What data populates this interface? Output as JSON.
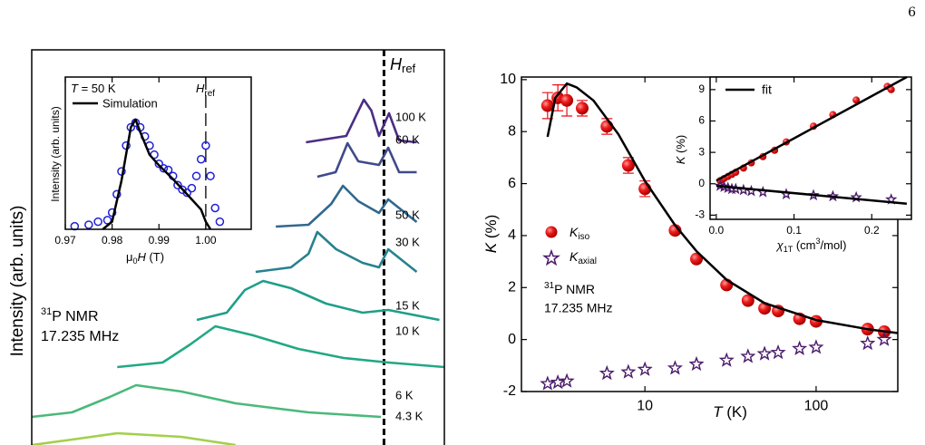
{
  "page_number": "6",
  "chart_data": [
    {
      "type": "line",
      "ylabel": "Intensity (arb. units)",
      "annotation": {
        "sup": "31",
        "text": "P NMR",
        "line2": "17.235 MHz"
      },
      "ref_x": 1,
      "ref_label": {
        "main": "H",
        "sub": "ref"
      },
      "xlim": [
        0.86,
        1.024
      ],
      "ylim": [
        0,
        436
      ],
      "series": [
        {
          "name": "100 K",
          "color": "#4b2e83",
          "x": [
            0.969,
            0.985,
            0.992,
            0.995,
            0.998,
            1.002,
            1.006,
            1.013
          ],
          "values": [
            334,
            341,
            381,
            369,
            341,
            366,
            336,
            334
          ]
        },
        {
          "name": "60 K",
          "color": "#3f4a8a",
          "x": [
            0.9735,
            0.9808,
            0.9855,
            0.9898,
            0.998,
            1.0017,
            1.006,
            1.013
          ],
          "values": [
            296,
            301,
            333,
            313,
            309,
            328,
            301,
            301
          ]
        },
        {
          "name": "50 K",
          "color": "#31688e",
          "x": [
            0.957,
            0.97,
            0.979,
            0.9837,
            0.9898,
            0.998,
            1.0017,
            1.013
          ],
          "values": [
            241,
            243,
            266,
            286,
            269,
            256,
            271,
            246
          ]
        },
        {
          "name": "30 K",
          "color": "#26828e",
          "x": [
            0.949,
            0.963,
            0.97,
            0.9735,
            0.981,
            0.9915,
            0.998,
            1.0017,
            1.013
          ],
          "values": [
            191,
            196,
            211,
            235,
            216,
            201,
            196,
            216,
            191
          ]
        },
        {
          "name": "15 K",
          "color": "#1f9e89",
          "x": [
            0.9256,
            0.9375,
            0.9447,
            0.952,
            0.963,
            0.977,
            0.9915,
            1.0017,
            1.022
          ],
          "values": [
            138,
            146,
            171,
            181,
            173,
            156,
            146,
            149,
            138
          ]
        },
        {
          "name": "10 K",
          "color": "#22a884",
          "x": [
            0.894,
            0.912,
            0.923,
            0.933,
            0.948,
            0.966,
            0.984,
            1.0017,
            1.024
          ],
          "values": [
            86,
            91,
            111,
            131,
            121,
            106,
            96,
            91,
            86
          ]
        },
        {
          "name": "6 K",
          "color": "#4ab97a",
          "x": [
            0.86,
            0.876,
            0.891,
            0.9015,
            0.9195,
            0.941,
            0.97,
            0.9988
          ],
          "values": [
            31,
            36,
            53,
            66,
            59,
            46,
            36,
            31
          ]
        },
        {
          "name": "4.3 K",
          "color": "#a2d04a",
          "x": [
            0.86,
            0.876,
            0.894,
            0.9195,
            0.941
          ],
          "values": [
            0,
            6,
            13,
            9,
            0
          ]
        }
      ]
    },
    {
      "type": "scatter",
      "annotation": {
        "var": "T",
        "text": " = 50 K"
      },
      "ref_x": 1,
      "ref_label": {
        "main": "H",
        "sub": "ref"
      },
      "ylabel": "Intensity (arb. units)",
      "xlabel": {
        "pre": "μ",
        "sub": "0",
        "var": "H",
        "post": " (T)"
      },
      "xlim": [
        0.97,
        1.0097
      ],
      "ylim": [
        0,
        100
      ],
      "xticks": [
        0.97,
        0.98,
        0.99,
        {
          "value": 1,
          "label": "1.00"
        }
      ],
      "series": [
        {
          "mode": "markers",
          "marker": "circle",
          "color": "#1f1fd6",
          "x": [
            0.972,
            0.975,
            0.977,
            0.979,
            0.98,
            0.981,
            0.982,
            0.983,
            0.984,
            0.985,
            0.986,
            0.987,
            0.988,
            0.989,
            0.99,
            0.991,
            0.992,
            0.993,
            0.994,
            0.995,
            0.996,
            0.997,
            0.998,
            0.999,
            1,
            1.001,
            1.002,
            1.003
          ],
          "values": [
            2,
            3,
            5,
            6,
            11,
            23,
            38,
            55,
            67,
            70,
            67,
            61,
            55,
            49,
            43,
            40,
            39,
            35,
            29,
            26,
            24,
            27,
            35,
            46,
            55,
            35,
            14,
            5
          ]
        },
        {
          "name": "Simulation",
          "mode": "line",
          "color": "#000000",
          "x": [
            0.978,
            0.98,
            0.982,
            0.984,
            0.985,
            0.986,
            0.988,
            0.99,
            0.993,
            0.996,
            0.999,
            1,
            1.001
          ],
          "values": [
            0,
            5,
            32,
            67,
            72,
            64,
            49,
            42,
            33,
            23,
            13,
            5,
            0
          ]
        }
      ]
    },
    {
      "type": "scatter",
      "xscale": "log",
      "xlim": [
        1.9,
        300
      ],
      "ylim": [
        -2,
        10.1
      ],
      "xticks": [
        10,
        100
      ],
      "yticks": [
        -2,
        0,
        2,
        4,
        6,
        8,
        10
      ],
      "xlabel": {
        "var": "T",
        "post": " (K)"
      },
      "ylabel": {
        "var": "K",
        "post": " (%)"
      },
      "annotation": {
        "sup": "31",
        "text": "P NMR",
        "line2": "17.235 MHz"
      },
      "series": [
        {
          "name": "K",
          "subscript": "iso",
          "mode": "markers",
          "marker": "sphere",
          "color": "#e8101a",
          "x": [
            2.7,
            3.1,
            3.5,
            4.3,
            6,
            8,
            10,
            15,
            20,
            30,
            40,
            50,
            60,
            80,
            100,
            200,
            250
          ],
          "values": [
            9.0,
            9.3,
            9.2,
            8.9,
            8.2,
            6.7,
            5.8,
            4.2,
            3.1,
            2.1,
            1.5,
            1.2,
            1.1,
            0.8,
            0.7,
            0.4,
            0.3
          ],
          "errors": [
            0.5,
            0.5,
            0.6,
            0.3,
            0.3,
            0.3,
            0.3,
            0.1,
            0.1,
            0.1,
            0.1,
            0.1,
            0.1,
            0.1,
            0.1,
            0.1,
            0.1
          ]
        },
        {
          "name": "K",
          "subscript": "axial",
          "mode": "markers",
          "marker": "star",
          "color": "#4a1a6b",
          "x": [
            2.7,
            3.1,
            3.5,
            6,
            8,
            10,
            15,
            20,
            30,
            40,
            50,
            60,
            80,
            100,
            200,
            250
          ],
          "values": [
            -1.7,
            -1.65,
            -1.6,
            -1.3,
            -1.25,
            -1.15,
            -1.1,
            -0.95,
            -0.8,
            -0.65,
            -0.55,
            -0.5,
            -0.35,
            -0.3,
            -0.15,
            0
          ]
        },
        {
          "mode": "line",
          "color": "#000000",
          "x": [
            2.7,
            3,
            3.5,
            4,
            5,
            7,
            10,
            15,
            20,
            30,
            50,
            100,
            200,
            300
          ],
          "values": [
            7.8,
            9.3,
            9.85,
            9.7,
            9.2,
            7.9,
            6.1,
            4.4,
            3.4,
            2.3,
            1.4,
            0.75,
            0.4,
            0.25
          ]
        }
      ]
    },
    {
      "type": "scatter",
      "xlim": [
        -0.008,
        0.251
      ],
      "ylim": [
        -3.4,
        10.2
      ],
      "xticks": [
        {
          "value": 0,
          "label": "0.0"
        },
        0.1,
        0.2
      ],
      "yticks": [
        -3,
        0,
        3,
        6,
        9
      ],
      "xlabel": {
        "var": "χ",
        "sub": "1T",
        "post": " (cm",
        "sup": "3",
        "post2": "/mol)"
      },
      "ylabel": {
        "var": "K",
        "post": " (%)"
      },
      "series": [
        {
          "mode": "markers",
          "marker": "sphere",
          "color": "#e8101a",
          "x": [
            0.005,
            0.01,
            0.015,
            0.02,
            0.025,
            0.035,
            0.045,
            0.06,
            0.075,
            0.09,
            0.125,
            0.15,
            0.18,
            0.22,
            0.225
          ],
          "values": [
            0.3,
            0.5,
            0.7,
            0.9,
            1.1,
            1.5,
            2.0,
            2.6,
            3.2,
            4.0,
            5.5,
            6.6,
            8.0,
            9.3,
            9.0
          ]
        },
        {
          "mode": "markers",
          "marker": "star",
          "color": "#4a1a6b",
          "x": [
            0.005,
            0.01,
            0.015,
            0.02,
            0.025,
            0.035,
            0.045,
            0.06,
            0.09,
            0.125,
            0.15,
            0.18,
            0.225
          ],
          "values": [
            -0.2,
            -0.3,
            -0.4,
            -0.5,
            -0.5,
            -0.6,
            -0.7,
            -0.8,
            -1.0,
            -1.1,
            -1.2,
            -1.3,
            -1.5
          ]
        },
        {
          "name": "fit",
          "mode": "line",
          "color": "#000000",
          "x": [
            0,
            0.245
          ],
          "values": [
            0.3,
            10.2
          ]
        },
        {
          "mode": "line",
          "color": "#000000",
          "x": [
            0,
            0.245
          ],
          "values": [
            -0.2,
            -1.9
          ]
        }
      ]
    }
  ]
}
